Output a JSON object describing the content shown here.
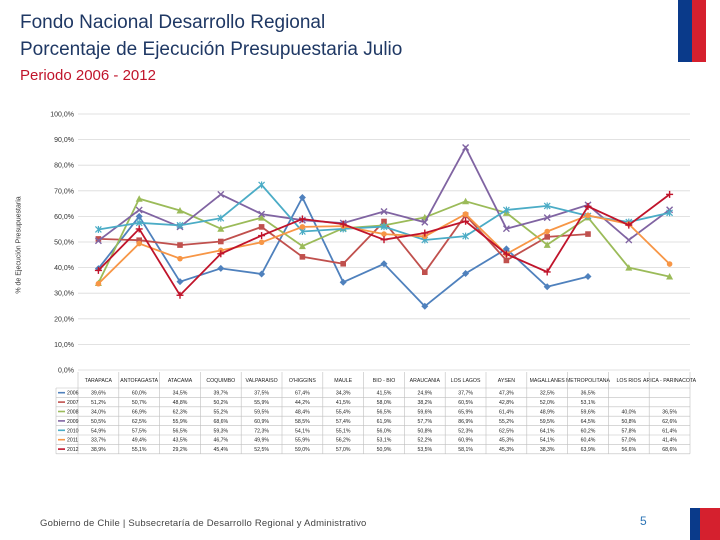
{
  "header": {
    "title_line1": "Fondo Nacional Desarrollo Regional",
    "title_line2": "Porcentaje de Ejecución Presupuestaria Julio",
    "period": "Periodo 2006 - 2012"
  },
  "footer": {
    "text": "Gobierno de Chile | Subsecretaría de Desarrollo Regional y Administrativo",
    "page": "5"
  },
  "colors": {
    "title": "#1f3864",
    "period": "#c0142b",
    "flag_blue": "#0a3a8a",
    "flag_red": "#d5202e"
  },
  "chart_data": {
    "type": "line",
    "title": "",
    "xlabel": "",
    "ylabel": "% de Ejecución Presupuestaria",
    "ylim": [
      0,
      100
    ],
    "yticks": [
      "0,0%",
      "10,0%",
      "20,0%",
      "30,0%",
      "40,0%",
      "50,0%",
      "60,0%",
      "70,0%",
      "80,0%",
      "90,0%",
      "100,0%"
    ],
    "grid": true,
    "categories": [
      "TARAPACA",
      "ANTOFAGASTA",
      "ATACAMA",
      "COQUIMBO",
      "VALPARAISO",
      "O'HIGGINS",
      "MAULE",
      "BIO - BIO",
      "ARAUCANIA",
      "LOS LAGOS",
      "AYSEN",
      "MAGALLANES",
      "METROPOLITANA",
      "LOS RIOS",
      "ARICA - PARINACOTA"
    ],
    "series": [
      {
        "name": "2006",
        "color": "#4f81bd",
        "values": [
          39.6,
          60.0,
          34.5,
          39.7,
          37.5,
          67.4,
          34.3,
          41.5,
          24.9,
          37.7,
          47.3,
          32.5,
          36.5,
          null,
          null
        ]
      },
      {
        "name": "2007",
        "color": "#c0504d",
        "values": [
          51.2,
          50.7,
          48.8,
          50.2,
          55.9,
          44.2,
          41.5,
          58.0,
          38.2,
          60.5,
          42.8,
          52.0,
          53.1,
          null,
          null
        ]
      },
      {
        "name": "2008",
        "color": "#9bbb59",
        "values": [
          34.0,
          66.9,
          62.3,
          55.2,
          59.5,
          48.4,
          55.4,
          56.5,
          59.6,
          65.9,
          61.4,
          48.9,
          59.6,
          40.0,
          36.5
        ]
      },
      {
        "name": "2009",
        "color": "#8064a2",
        "values": [
          50.5,
          62.5,
          55.9,
          68.6,
          60.9,
          58.5,
          57.4,
          61.9,
          57.7,
          86.9,
          55.2,
          59.5,
          64.5,
          50.8,
          62.6
        ]
      },
      {
        "name": "2010",
        "color": "#4bacc6",
        "values": [
          54.9,
          57.5,
          56.5,
          59.3,
          72.3,
          54.1,
          55.1,
          56.0,
          50.8,
          52.3,
          62.5,
          64.1,
          60.2,
          57.8,
          61.4
        ]
      },
      {
        "name": "2011",
        "color": "#f79646",
        "values": [
          33.7,
          49.4,
          43.5,
          46.7,
          49.9,
          55.9,
          56.2,
          53.1,
          52.2,
          60.9,
          45.3,
          54.1,
          60.4,
          57.0,
          41.4
        ]
      },
      {
        "name": "2012",
        "color": "#c0142b",
        "values": [
          38.9,
          55.1,
          29.2,
          45.4,
          52.5,
          59.0,
          57.0,
          50.9,
          53.5,
          58.1,
          45.3,
          38.3,
          63.9,
          56.6,
          68.6
        ]
      }
    ]
  }
}
